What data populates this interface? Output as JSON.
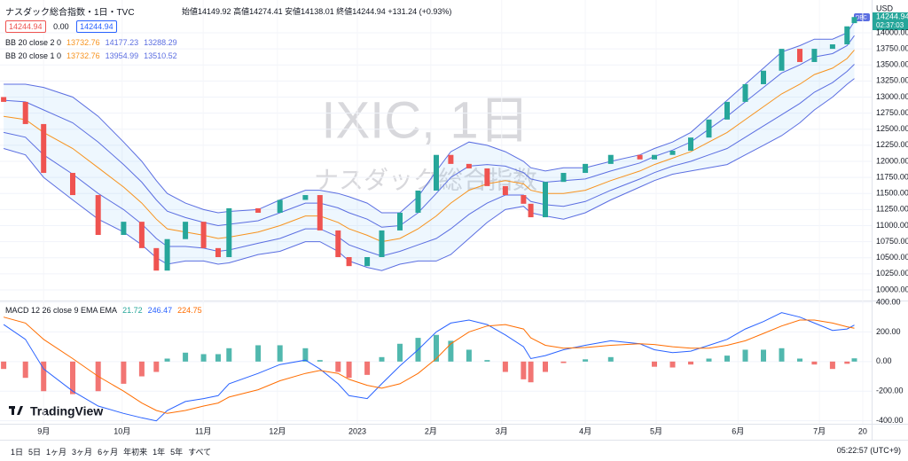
{
  "header": {
    "symbol": "ナスダック総合指数・1日・TVC",
    "open_label": "始値",
    "open": "14149.92",
    "high_label": "高値",
    "high": "14274.41",
    "low_label": "安値",
    "low": "14138.01",
    "close_label": "終値",
    "close": "14244.94",
    "change": "+131.24 (+0.93%)",
    "sell": "14244.94",
    "spread": "0.00",
    "buy": "14244.94"
  },
  "watermark": {
    "title": "IXIC, 1日",
    "subtitle": "ナスダック総合指数"
  },
  "price_axis": {
    "currency": "USD",
    "tag": "DBC",
    "last": "14244.94",
    "countdown": "02:37:03"
  },
  "logo": "TradingView",
  "toolbar": {
    "ranges": [
      "1日",
      "5日",
      "1ヶ月",
      "3ヶ月",
      "6ヶ月",
      "年初来",
      "1年",
      "5年",
      "すべて"
    ],
    "clock": "05:22:57 (UTC+9)"
  },
  "chart_data": [
    {
      "type": "candlestick",
      "legend": [
        {
          "name": "BB 20 close 2 0",
          "values": [
            13732.76,
            14177.23,
            13288.29
          ]
        },
        {
          "name": "BB 20 close 1 0",
          "values": [
            13732.76,
            13954.99,
            13510.52
          ]
        }
      ],
      "x": [
        1,
        7,
        12,
        20,
        27,
        34,
        39,
        43,
        46,
        51,
        56,
        60,
        63,
        71,
        77,
        84,
        88,
        93,
        96,
        101,
        105,
        110,
        115,
        120,
        124,
        129,
        134,
        139,
        144,
        146,
        150,
        155,
        161,
        168,
        176,
        180,
        185,
        190,
        195,
        200,
        205,
        210,
        215,
        220,
        224,
        229,
        233,
        235
      ],
      "open": [
        13000,
        12925,
        12580,
        11820,
        11475,
        10855,
        11060,
        10650,
        10300,
        10790,
        11060,
        10650,
        10510,
        11270,
        11200,
        11400,
        11475,
        10925,
        10510,
        10370,
        10510,
        10925,
        11200,
        11545,
        12100,
        11960,
        11890,
        11615,
        11475,
        11340,
        11130,
        11680,
        11820,
        11960,
        12100,
        12030,
        12100,
        12165,
        12370,
        12650,
        12925,
        13200,
        13410,
        13750,
        13545,
        13750,
        13820,
        14149.92
      ],
      "close": [
        12925,
        12580,
        11820,
        11475,
        10855,
        11060,
        10650,
        10300,
        10790,
        11060,
        10650,
        10510,
        11270,
        11200,
        11400,
        11475,
        10925,
        10510,
        10370,
        10510,
        10925,
        11200,
        11545,
        12100,
        11960,
        11890,
        11615,
        11475,
        11340,
        11130,
        11680,
        11820,
        11960,
        12100,
        12030,
        12100,
        12165,
        12370,
        12650,
        12925,
        13200,
        13410,
        13750,
        13545,
        13750,
        13820,
        14100,
        14244.94
      ],
      "bands": [
        {
          "color": "#f7931e",
          "values": [
            12700,
            12650,
            12450,
            12200,
            11900,
            11600,
            11350,
            11100,
            10950,
            10900,
            10850,
            10800,
            10820,
            10900,
            11000,
            11150,
            11150,
            11050,
            10950,
            10850,
            10750,
            10800,
            10950,
            11150,
            11350,
            11550,
            11650,
            11700,
            11650,
            11550,
            11500,
            11500,
            11550,
            11700,
            11850,
            11950,
            12050,
            12150,
            12300,
            12450,
            12650,
            12850,
            13050,
            13200,
            13350,
            13450,
            13600,
            13732.76
          ]
        },
        {
          "color": "#5b6ee1",
          "values": [
            13200,
            13200,
            13150,
            13000,
            12700,
            12300,
            12000,
            11700,
            11500,
            11350,
            11250,
            11200,
            11220,
            11250,
            11400,
            11550,
            11550,
            11500,
            11450,
            11350,
            11200,
            11200,
            11450,
            11850,
            12150,
            12300,
            12250,
            12150,
            12000,
            11900,
            11850,
            11900,
            11900,
            12000,
            12100,
            12200,
            12300,
            12450,
            12700,
            12950,
            13200,
            13450,
            13700,
            13800,
            13900,
            13900,
            14000,
            14177.23
          ]
        },
        {
          "color": "#5b6ee1",
          "values": [
            12200,
            12100,
            11750,
            11400,
            11100,
            10900,
            10700,
            10500,
            10400,
            10450,
            10450,
            10400,
            10420,
            10550,
            10600,
            10750,
            10750,
            10600,
            10450,
            10350,
            10300,
            10400,
            10450,
            10450,
            10550,
            10800,
            11050,
            11250,
            11300,
            11200,
            11150,
            11100,
            11200,
            11400,
            11600,
            11700,
            11800,
            11850,
            11900,
            11950,
            12100,
            12250,
            12400,
            12600,
            12800,
            13000,
            13200,
            13288.29
          ]
        },
        {
          "color": "#5b6ee1",
          "values": [
            12950,
            12925,
            12800,
            12600,
            12300,
            11950,
            11675,
            11400,
            11225,
            11125,
            11050,
            11000,
            11020,
            11075,
            11200,
            11350,
            11350,
            11275,
            11200,
            11100,
            10975,
            11000,
            11200,
            11500,
            11750,
            11925,
            11950,
            11925,
            11825,
            11725,
            11675,
            11700,
            11725,
            11850,
            11975,
            12075,
            12175,
            12300,
            12500,
            12700,
            12925,
            13150,
            13375,
            13500,
            13625,
            13675,
            13800,
            13954.99
          ]
        },
        {
          "color": "#5b6ee1",
          "values": [
            12450,
            12375,
            12100,
            11800,
            11500,
            11250,
            11025,
            10800,
            10675,
            10675,
            10650,
            10600,
            10620,
            10725,
            10800,
            10950,
            10950,
            10825,
            10700,
            10600,
            10525,
            10600,
            10700,
            10800,
            10950,
            11175,
            11350,
            11475,
            11475,
            11375,
            11325,
            11300,
            11375,
            11550,
            11725,
            11825,
            11925,
            12000,
            12100,
            12200,
            12375,
            12550,
            12725,
            12900,
            13075,
            13225,
            13400,
            13510.52
          ]
        }
      ],
      "xlim": [
        0,
        240
      ],
      "xticks": [
        {
          "value": 12,
          "label": "9月"
        },
        {
          "value": 33.6,
          "label": "10月"
        },
        {
          "value": 55.9,
          "label": "11月"
        },
        {
          "value": 76.3,
          "label": "12月"
        },
        {
          "value": 98.3,
          "label": "2023"
        },
        {
          "value": 118.5,
          "label": "2月"
        },
        {
          "value": 138,
          "label": "3月"
        },
        {
          "value": 161,
          "label": "4月"
        },
        {
          "value": 180.5,
          "label": "5月"
        },
        {
          "value": 203,
          "label": "6月"
        },
        {
          "value": 225.4,
          "label": "7月"
        },
        {
          "value": 237.3,
          "label": "20"
        }
      ],
      "ylim": [
        9848,
        14510
      ],
      "yticks": [
        {
          "value": 10000,
          "label": "10000.00"
        },
        {
          "value": 10250,
          "label": "10250.00"
        },
        {
          "value": 10500,
          "label": "10500.00"
        },
        {
          "value": 10750,
          "label": "10750.00"
        },
        {
          "value": 11000,
          "label": "11000.00"
        },
        {
          "value": 11250,
          "label": "11250.00"
        },
        {
          "value": 11500,
          "label": "11500.00"
        },
        {
          "value": 11750,
          "label": "11750.00"
        },
        {
          "value": 12000,
          "label": "12000.00"
        },
        {
          "value": 12250,
          "label": "12250.00"
        },
        {
          "value": 12500,
          "label": "12500.00"
        },
        {
          "value": 12750,
          "label": "12750.00"
        },
        {
          "value": 13000,
          "label": "13000.00"
        },
        {
          "value": 13250,
          "label": "13250.00"
        },
        {
          "value": 13500,
          "label": "13500.00"
        },
        {
          "value": 13750,
          "label": "13750.00"
        },
        {
          "value": 14000,
          "label": "14000.00"
        }
      ],
      "up_color": "#26a69a",
      "down_color": "#ef5350"
    },
    {
      "type": "macd",
      "legend": {
        "name": "MACD 12 26 close 9 EMA EMA",
        "values": [
          21.72,
          246.47,
          224.75
        ]
      },
      "x": [
        1,
        7,
        12,
        20,
        27,
        34,
        39,
        43,
        46,
        51,
        56,
        60,
        63,
        71,
        77,
        84,
        88,
        93,
        96,
        101,
        105,
        110,
        115,
        120,
        124,
        129,
        134,
        139,
        144,
        146,
        150,
        155,
        161,
        168,
        176,
        180,
        185,
        190,
        195,
        200,
        205,
        210,
        215,
        220,
        224,
        229,
        233,
        235
      ],
      "series": [
        {
          "color": "#2962ff",
          "values": [
            250,
            150,
            -50,
            -200,
            -300,
            -350,
            -380,
            -400,
            -330,
            -270,
            -250,
            -230,
            -150,
            -80,
            -20,
            10,
            -50,
            -150,
            -230,
            -250,
            -150,
            -30,
            80,
            200,
            260,
            280,
            250,
            180,
            100,
            20,
            40,
            80,
            110,
            140,
            120,
            80,
            60,
            70,
            110,
            150,
            220,
            270,
            330,
            300,
            260,
            210,
            220,
            246.47
          ]
        },
        {
          "color": "#ff6d00",
          "values": [
            300,
            260,
            150,
            20,
            -100,
            -200,
            -280,
            -330,
            -350,
            -330,
            -300,
            -280,
            -240,
            -190,
            -130,
            -80,
            -60,
            -80,
            -120,
            -160,
            -180,
            -150,
            -80,
            20,
            120,
            200,
            240,
            250,
            220,
            160,
            110,
            90,
            95,
            110,
            120,
            115,
            100,
            90,
            90,
            110,
            140,
            190,
            240,
            280,
            280,
            260,
            235,
            224.75
          ]
        }
      ],
      "histogram": [
        -50,
        -110,
        -200,
        -220,
        -200,
        -150,
        -100,
        -70,
        20,
        60,
        50,
        50,
        90,
        110,
        110,
        90,
        10,
        -70,
        -110,
        -90,
        30,
        120,
        160,
        180,
        140,
        80,
        10,
        -70,
        -120,
        -140,
        -70,
        -10,
        15,
        30,
        0,
        -35,
        -40,
        -20,
        20,
        40,
        80,
        80,
        90,
        20,
        -20,
        -50,
        -15,
        21.72
      ],
      "pos_color": "#26a69a",
      "neg_color": "#ef5350",
      "xlim": [
        0,
        240
      ],
      "ylim": [
        -420,
        400
      ],
      "yticks": [
        {
          "value": 400,
          "label": "400.00"
        },
        {
          "value": 200,
          "label": "200.00"
        },
        {
          "value": 0,
          "label": "0.00"
        },
        {
          "value": -200,
          "label": "-200.00"
        },
        {
          "value": -400,
          "label": "-400.00"
        }
      ]
    }
  ]
}
